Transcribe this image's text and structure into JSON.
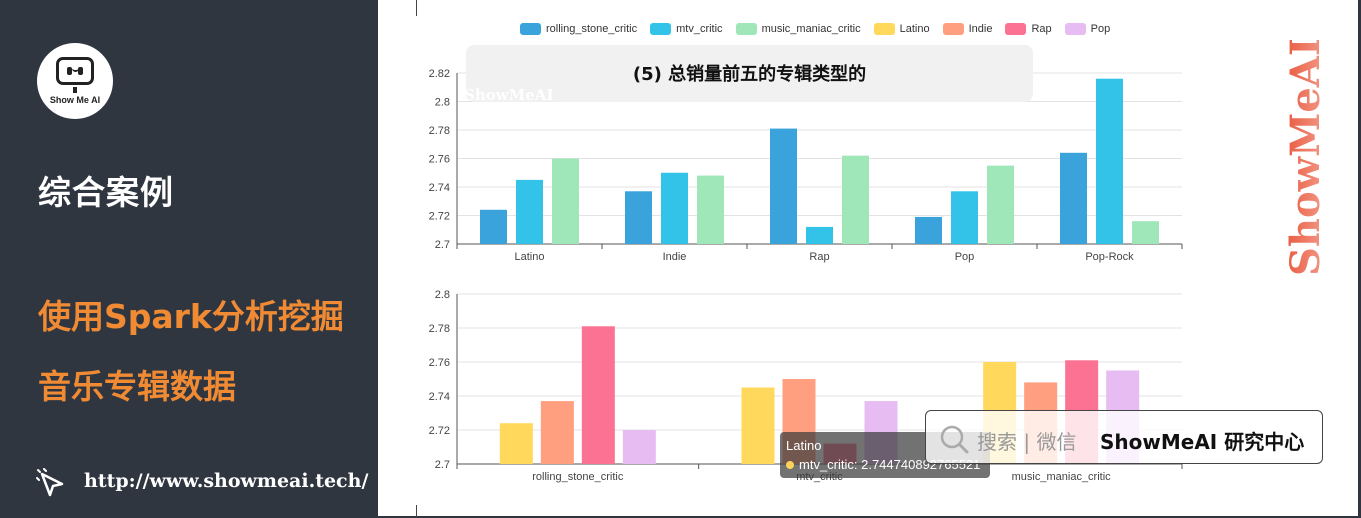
{
  "sidebar": {
    "logo_text": "Show Me AI",
    "section_title": "综合案例",
    "topic_line1": "使用Spark分析挖掘",
    "topic_line2": "音乐专辑数据",
    "url": "http://www.showmeai.tech/"
  },
  "caption": {
    "text": "(5) 总销量前五的专辑类型的",
    "watermark": "ShowMeAI"
  },
  "vertical_watermark": "ShowMeAI",
  "legend": [
    {
      "name": "rolling_stone_critic",
      "color": "#3ba3dc"
    },
    {
      "name": "mtv_critic",
      "color": "#33c3e8"
    },
    {
      "name": "music_maniac_critic",
      "color": "#9fe6b8"
    },
    {
      "name": "Latino",
      "color": "#ffd85c"
    },
    {
      "name": "Indie",
      "color": "#ff9f7f"
    },
    {
      "name": "Rap",
      "color": "#fb7293"
    },
    {
      "name": "Pop",
      "color": "#e7bcf3"
    }
  ],
  "chart_data": [
    {
      "type": "bar",
      "categories": [
        "Latino",
        "Indie",
        "Rap",
        "Pop",
        "Pop-Rock"
      ],
      "series": [
        {
          "name": "rolling_stone_critic",
          "values": [
            2.724,
            2.737,
            2.781,
            2.719,
            2.764
          ]
        },
        {
          "name": "mtv_critic",
          "values": [
            2.745,
            2.75,
            2.712,
            2.737,
            2.816
          ]
        },
        {
          "name": "music_maniac_critic",
          "values": [
            2.76,
            2.748,
            2.762,
            2.755,
            2.716
          ]
        }
      ],
      "ylim": [
        2.7,
        2.82
      ],
      "yticks": [
        "2.7",
        "2.72",
        "2.74",
        "2.76",
        "2.78",
        "2.8",
        "2.82"
      ],
      "grid": true
    },
    {
      "type": "bar",
      "categories": [
        "rolling_stone_critic",
        "mtv_critic",
        "music_maniac_critic"
      ],
      "series": [
        {
          "name": "Latino",
          "values": [
            2.724,
            2.745,
            2.76
          ]
        },
        {
          "name": "Indie",
          "values": [
            2.737,
            2.75,
            2.748
          ]
        },
        {
          "name": "Rap",
          "values": [
            2.781,
            2.712,
            2.761
          ]
        },
        {
          "name": "Pop",
          "values": [
            2.72,
            2.737,
            2.755
          ]
        }
      ],
      "ylim": [
        2.7,
        2.8
      ],
      "yticks": [
        "2.7",
        "2.72",
        "2.74",
        "2.76",
        "2.78",
        "2.8"
      ],
      "grid": true
    }
  ],
  "tooltip": {
    "title": "Latino",
    "line": "mtv_critic: 2.744740892765521"
  },
  "search_bar": {
    "text": "搜索 | 微信",
    "brand": "ShowMeAI 研究中心"
  }
}
